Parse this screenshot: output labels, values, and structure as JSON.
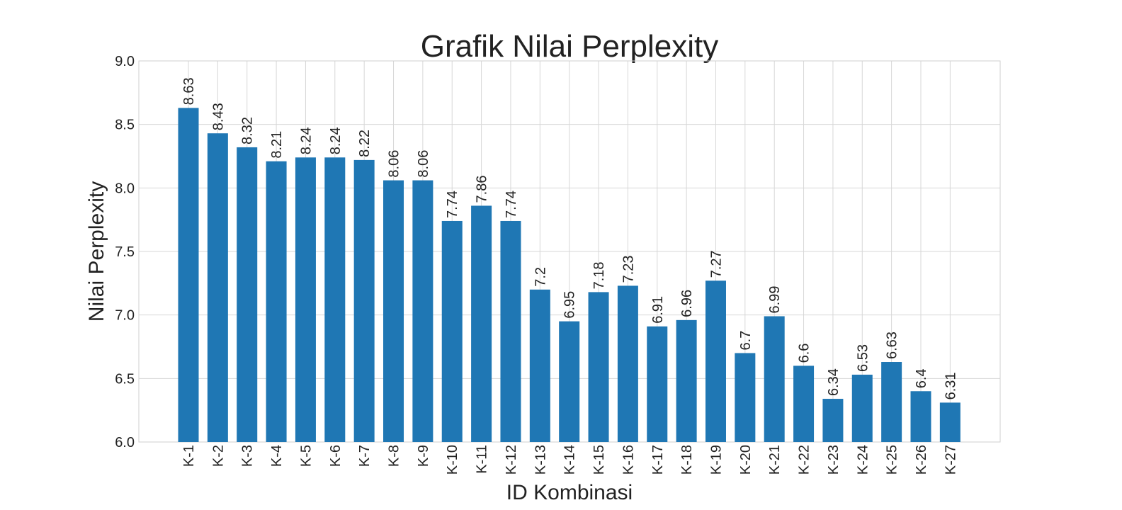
{
  "chart_data": {
    "type": "bar",
    "title": "Grafik Nilai Perplexity",
    "xlabel": "ID Kombinasi",
    "ylabel": "Nilai Perplexity",
    "ylim": [
      6.0,
      9.0
    ],
    "yticks": [
      "6.0",
      "6.5",
      "7.0",
      "7.5",
      "8.0",
      "8.5",
      "9.0"
    ],
    "grid": true,
    "bar_color": "#1f77b4",
    "categories": [
      "K-1",
      "K-2",
      "K-3",
      "K-4",
      "K-5",
      "K-6",
      "K-7",
      "K-8",
      "K-9",
      "K-10",
      "K-11",
      "K-12",
      "K-13",
      "K-14",
      "K-15",
      "K-16",
      "K-17",
      "K-18",
      "K-19",
      "K-20",
      "K-21",
      "K-22",
      "K-23",
      "K-24",
      "K-25",
      "K-26",
      "K-27"
    ],
    "values": [
      8.63,
      8.43,
      8.32,
      8.21,
      8.24,
      8.24,
      8.22,
      8.06,
      8.06,
      7.74,
      7.86,
      7.74,
      7.2,
      6.95,
      7.18,
      7.23,
      6.91,
      6.96,
      7.27,
      6.7,
      6.99,
      6.6,
      6.34,
      6.53,
      6.63,
      6.4,
      6.31
    ]
  }
}
